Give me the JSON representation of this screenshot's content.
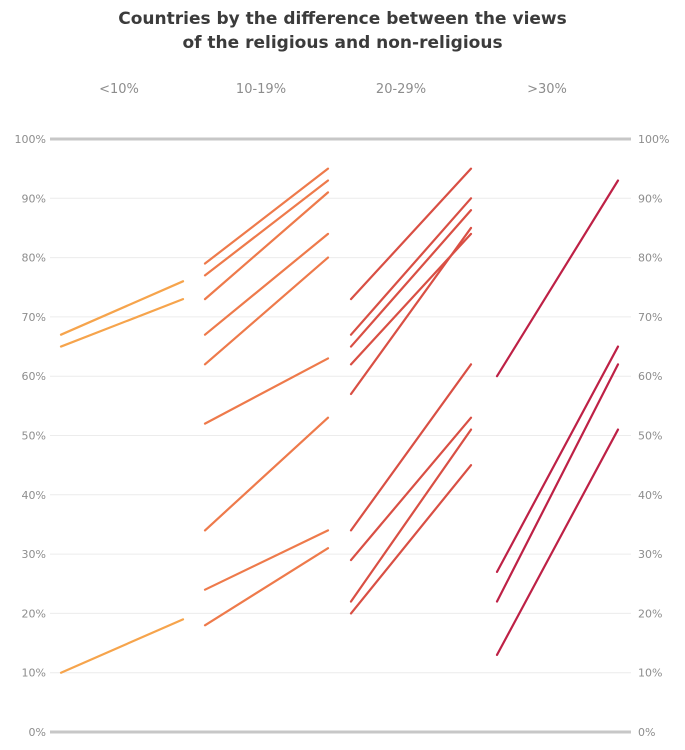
{
  "title": {
    "line1": "Countries by the difference between the views",
    "line2": "of the religious and non-religious"
  },
  "chart_data": {
    "type": "line",
    "subtype": "slope-groups",
    "title": "Countries by the difference between the views of the religious and non-religious",
    "description": "Four panels of slope lines; each line rises from a left value to a right value (percent).",
    "y_axis": {
      "min": 0,
      "max": 100,
      "grid": true,
      "label_sides": [
        "left",
        "right"
      ],
      "ticks": [
        {
          "value": 0,
          "label": "0%"
        },
        {
          "value": 10,
          "label": "10%"
        },
        {
          "value": 20,
          "label": "20%"
        },
        {
          "value": 30,
          "label": "30%"
        },
        {
          "value": 40,
          "label": "40%"
        },
        {
          "value": 50,
          "label": "50%"
        },
        {
          "value": 60,
          "label": "60%"
        },
        {
          "value": 70,
          "label": "70%"
        },
        {
          "value": 80,
          "label": "80%"
        },
        {
          "value": 90,
          "label": "90%"
        },
        {
          "value": 100,
          "label": "100%"
        }
      ]
    },
    "groups": [
      {
        "label": "<10%",
        "color": "#F6A44C",
        "lines": [
          {
            "from": 65,
            "to": 73
          },
          {
            "from": 67,
            "to": 76
          },
          {
            "from": 10,
            "to": 19
          }
        ]
      },
      {
        "label": "10-19%",
        "color": "#EE7A4B",
        "lines": [
          {
            "from": 79,
            "to": 95
          },
          {
            "from": 77,
            "to": 93
          },
          {
            "from": 73,
            "to": 91
          },
          {
            "from": 67,
            "to": 84
          },
          {
            "from": 62,
            "to": 80
          },
          {
            "from": 52,
            "to": 63
          },
          {
            "from": 34,
            "to": 53
          },
          {
            "from": 24,
            "to": 34
          },
          {
            "from": 18,
            "to": 31
          }
        ]
      },
      {
        "label": "20-29%",
        "color": "#D94F44",
        "lines": [
          {
            "from": 73,
            "to": 95
          },
          {
            "from": 67,
            "to": 90
          },
          {
            "from": 65,
            "to": 88
          },
          {
            "from": 57,
            "to": 85
          },
          {
            "from": 62,
            "to": 84
          },
          {
            "from": 34,
            "to": 62
          },
          {
            "from": 29,
            "to": 53
          },
          {
            "from": 22,
            "to": 51
          },
          {
            "from": 20,
            "to": 45
          }
        ]
      },
      {
        "label": ">30%",
        "color": "#BE2146",
        "lines": [
          {
            "from": 60,
            "to": 93
          },
          {
            "from": 27,
            "to": 65
          },
          {
            "from": 22,
            "to": 62
          },
          {
            "from": 13,
            "to": 51
          }
        ]
      }
    ]
  },
  "colors": {
    "title_text": "#3b3b3b",
    "axis_text": "#8d8d8d",
    "gridline": "#ececec",
    "axis_edge_line": "#c7c7c7",
    "background": "#ffffff"
  }
}
